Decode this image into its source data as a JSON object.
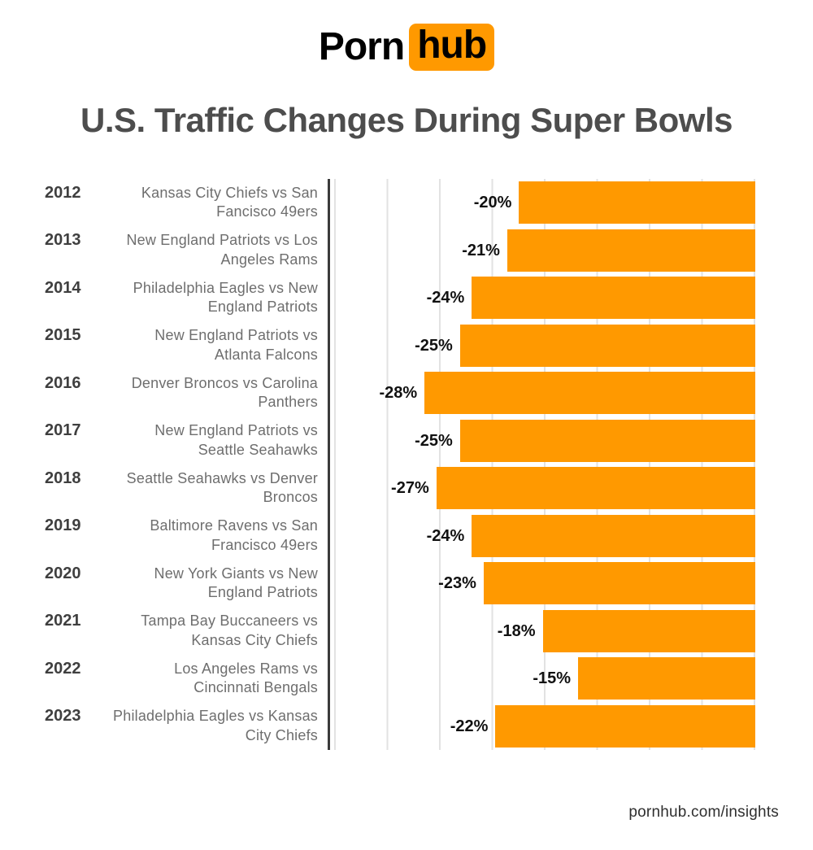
{
  "logo": {
    "text_plain": "Porn",
    "text_boxed": "hub"
  },
  "title": "U.S. Traffic Changes During Super Bowls",
  "footer": "pornhub.com/insights",
  "colors": {
    "accent_orange": "#ff9900",
    "title_gray": "#4d4d4d",
    "year_gray": "#3f3f3f",
    "matchup_gray": "#6e6e6e",
    "value_black": "#111111",
    "gridline_gray": "#e2e2e2",
    "axis_dark": "#3a3a3a"
  },
  "chart_data": {
    "type": "bar",
    "orientation": "horizontal",
    "anchor": "right",
    "title": "U.S. Traffic Changes During Super Bowls",
    "categories": [
      "2012",
      "2013",
      "2014",
      "2015",
      "2016",
      "2017",
      "2018",
      "2019",
      "2020",
      "2021",
      "2022",
      "2023"
    ],
    "matchups": [
      "Kansas City Chiefs vs San\nFancisco 49ers",
      "New England Patriots vs Los\nAngeles Rams",
      "Philadelphia Eagles vs New\nEngland Patriots",
      "New England Patriots vs\nAtlanta Falcons",
      "Denver Broncos vs Carolina\nPanthers",
      "New England Patriots vs\nSeattle Seahawks",
      "Seattle Seahawks vs Denver\nBroncos",
      "Baltimore Ravens vs San\nFrancisco 49ers",
      "New York Giants vs New\nEngland Patriots",
      "Tampa Bay Buccaneers vs\nKansas City Chiefs",
      "Los Angeles Rams vs\nCincinnati Bengals",
      "Philadelphia Eagles vs Kansas\nCity Chiefs"
    ],
    "values": [
      -20,
      -21,
      -24,
      -25,
      -28,
      -25,
      -27,
      -24,
      -23,
      -18,
      -15,
      -22
    ],
    "value_labels": [
      "-20%",
      "-21%",
      "-24%",
      "-25%",
      "-28%",
      "-25%",
      "-27%",
      "-24%",
      "-23%",
      "-18%",
      "-15%",
      "-22%"
    ],
    "xlabel": "",
    "ylabel": "",
    "xlim": [
      -36,
      0
    ],
    "grid": true,
    "legend": false,
    "bar_color": "#ff9900"
  }
}
